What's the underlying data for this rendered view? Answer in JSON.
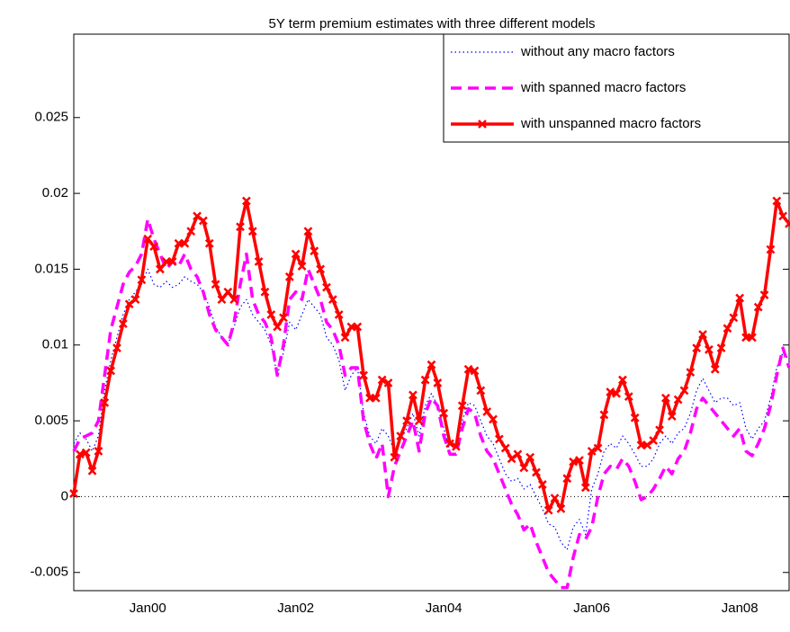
{
  "chart_data": {
    "type": "line",
    "title": "5Y term premium estimates with three different models",
    "categories": [
      null,
      null,
      null,
      null,
      null,
      null,
      null,
      null,
      null,
      null,
      null,
      null,
      "Jan00",
      null,
      null,
      null,
      null,
      null,
      null,
      null,
      null,
      null,
      null,
      null,
      null,
      null,
      null,
      null,
      null,
      null,
      null,
      null,
      null,
      null,
      null,
      null,
      "Jan02",
      null,
      null,
      null,
      null,
      null,
      null,
      null,
      null,
      null,
      null,
      null,
      null,
      null,
      null,
      null,
      null,
      null,
      null,
      null,
      null,
      null,
      null,
      null,
      "Jan04",
      null,
      null,
      null,
      null,
      null,
      null,
      null,
      null,
      null,
      null,
      null,
      null,
      null,
      null,
      null,
      null,
      null,
      null,
      null,
      null,
      null,
      null,
      null,
      "Jan06",
      null,
      null,
      null,
      null,
      null,
      null,
      null,
      null,
      null,
      null,
      null,
      null,
      null,
      null,
      null,
      null,
      null,
      null,
      null,
      null,
      null,
      null,
      null,
      "Jan08",
      null,
      null,
      null,
      null,
      null,
      null,
      null,
      null
    ],
    "series": [
      {
        "name": "without any macro factors",
        "color": "#0000ff",
        "style": "dotted",
        "values": [
          0.0035,
          0.0042,
          0.0038,
          0.003,
          0.004,
          0.007,
          0.009,
          0.0105,
          0.012,
          0.013,
          0.0135,
          0.014,
          0.015,
          0.014,
          0.0138,
          0.0142,
          0.0138,
          0.014,
          0.0145,
          0.0142,
          0.014,
          0.0135,
          0.0125,
          0.0112,
          0.0105,
          0.01,
          0.0112,
          0.0125,
          0.013,
          0.012,
          0.0115,
          0.011,
          0.01,
          0.008,
          0.0095,
          0.0115,
          0.011,
          0.012,
          0.013,
          0.0125,
          0.012,
          0.0105,
          0.01,
          0.009,
          0.007,
          0.008,
          0.0085,
          0.0055,
          0.004,
          0.0035,
          0.0045,
          0.004,
          0.003,
          0.0038,
          0.0045,
          0.0055,
          0.004,
          0.006,
          0.0068,
          0.006,
          0.0045,
          0.003,
          0.0032,
          0.005,
          0.0062,
          0.006,
          0.005,
          0.004,
          0.0035,
          0.0025,
          0.0015,
          0.001,
          0.0012,
          0.0005,
          0.0008,
          0.0,
          -0.0008,
          -0.0018,
          -0.002,
          -0.003,
          -0.0035,
          -0.002,
          -0.0015,
          -0.0025,
          0.0005,
          0.0015,
          0.003,
          0.0035,
          0.0032,
          0.004,
          0.0035,
          0.0028,
          0.002,
          0.002,
          0.0025,
          0.0035,
          0.004,
          0.0035,
          0.0042,
          0.0045,
          0.0055,
          0.007,
          0.0078,
          0.007,
          0.0062,
          0.0065,
          0.0065,
          0.006,
          0.0062,
          0.0045,
          0.0038,
          0.0045,
          0.005,
          0.0065,
          0.0085,
          0.0095,
          0.009
        ]
      },
      {
        "name": "with spanned macro factors",
        "color": "#ff00ff",
        "style": "dashed",
        "values": [
          0.003,
          0.0038,
          0.004,
          0.0042,
          0.005,
          0.008,
          0.011,
          0.0125,
          0.014,
          0.0148,
          0.0152,
          0.016,
          0.0183,
          0.017,
          0.016,
          0.015,
          0.0155,
          0.0152,
          0.016,
          0.015,
          0.0145,
          0.0135,
          0.012,
          0.011,
          0.0105,
          0.01,
          0.0115,
          0.014,
          0.016,
          0.013,
          0.012,
          0.0115,
          0.0105,
          0.008,
          0.01,
          0.013,
          0.0135,
          0.013,
          0.015,
          0.014,
          0.013,
          0.0115,
          0.011,
          0.01,
          0.008,
          0.0085,
          0.0085,
          0.005,
          0.0035,
          0.0025,
          0.0035,
          0.0,
          0.002,
          0.003,
          0.004,
          0.005,
          0.003,
          0.0055,
          0.0065,
          0.006,
          0.004,
          0.0028,
          0.0028,
          0.0045,
          0.0058,
          0.0055,
          0.004,
          0.003,
          0.0025,
          0.0015,
          0.0005,
          -0.0005,
          -0.0012,
          -0.0022,
          -0.0018,
          -0.003,
          -0.004,
          -0.005,
          -0.0055,
          -0.006,
          -0.006,
          -0.004,
          -0.0025,
          -0.0028,
          -0.002,
          0.0,
          0.0015,
          0.002,
          0.0018,
          0.0025,
          0.002,
          0.001,
          -0.0002,
          0.0,
          0.0005,
          0.0012,
          0.002,
          0.0015,
          0.0025,
          0.003,
          0.0042,
          0.0058,
          0.0065,
          0.006,
          0.0055,
          0.005,
          0.0045,
          0.004,
          0.0045,
          0.003,
          0.0027,
          0.0035,
          0.0045,
          0.006,
          0.008,
          0.0098,
          0.0085
        ]
      },
      {
        "name": "with unspanned macro factors",
        "color": "#ff0000",
        "style": "solid-x",
        "values": [
          0.0002,
          0.0028,
          0.0029,
          0.0017,
          0.003,
          0.0062,
          0.0083,
          0.0098,
          0.0114,
          0.0127,
          0.013,
          0.0143,
          0.017,
          0.0165,
          0.015,
          0.0155,
          0.0155,
          0.0167,
          0.0167,
          0.0175,
          0.0185,
          0.0182,
          0.0167,
          0.014,
          0.013,
          0.0135,
          0.013,
          0.0178,
          0.0195,
          0.0175,
          0.0155,
          0.0135,
          0.012,
          0.0112,
          0.0118,
          0.0145,
          0.016,
          0.0152,
          0.0175,
          0.0162,
          0.015,
          0.0138,
          0.013,
          0.012,
          0.0105,
          0.0112,
          0.0112,
          0.008,
          0.0065,
          0.0065,
          0.0077,
          0.0075,
          0.0026,
          0.004,
          0.005,
          0.0067,
          0.005,
          0.0077,
          0.0087,
          0.0075,
          0.0055,
          0.0035,
          0.0033,
          0.006,
          0.0084,
          0.0083,
          0.007,
          0.0056,
          0.0051,
          0.0038,
          0.0032,
          0.0025,
          0.0028,
          0.0019,
          0.0026,
          0.0016,
          0.0008,
          -0.0009,
          -0.0001,
          -0.0008,
          0.0012,
          0.0023,
          0.0024,
          0.0006,
          0.003,
          0.0032,
          0.0054,
          0.0069,
          0.0068,
          0.0077,
          0.0066,
          0.0052,
          0.0034,
          0.0034,
          0.0037,
          0.0044,
          0.0065,
          0.0053,
          0.0064,
          0.007,
          0.0082,
          0.0098,
          0.0107,
          0.0097,
          0.0084,
          0.0098,
          0.0111,
          0.0118,
          0.0131,
          0.0105,
          0.0105,
          0.0125,
          0.0133,
          0.0163,
          0.0195,
          0.0185,
          0.018
        ]
      }
    ],
    "ylim": [
      -0.0062,
      0.0305
    ],
    "yticks": [
      -0.005,
      0,
      0.005,
      0.01,
      0.015,
      0.02,
      0.025
    ],
    "reference_line": 0,
    "legend": "upper right"
  }
}
